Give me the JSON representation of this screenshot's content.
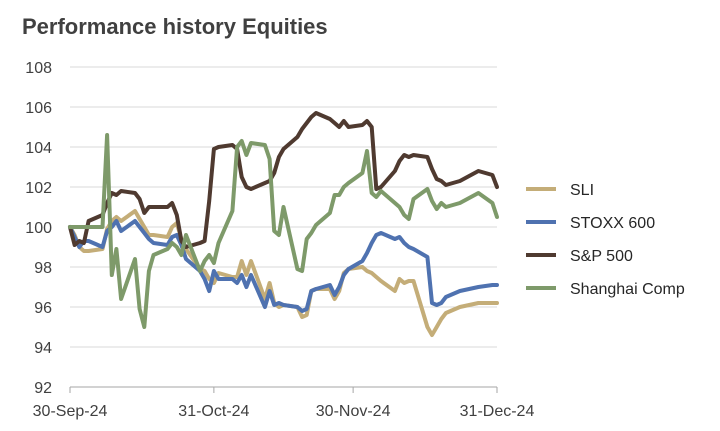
{
  "chart_data": {
    "type": "line",
    "title": "Performance history Equities",
    "xlabel": "",
    "ylabel": "",
    "ylim": [
      92,
      108
    ],
    "yticks": [
      92,
      94,
      96,
      98,
      100,
      102,
      104,
      106,
      108
    ],
    "xlim": [
      "2024-09-30",
      "2024-12-31"
    ],
    "xticks": [
      "30-Sep-24",
      "31-Oct-24",
      "30-Nov-24",
      "31-Dec-24"
    ],
    "xtick_dates": [
      "2024-09-30",
      "2024-10-31",
      "2024-11-30",
      "2024-12-31"
    ],
    "grid": "horizontal",
    "legend_position": "right",
    "series": [
      {
        "name": "SLI",
        "color": "#c4ad78",
        "x": [
          "2024-09-30",
          "2024-10-01",
          "2024-10-02",
          "2024-10-03",
          "2024-10-04",
          "2024-10-07",
          "2024-10-08",
          "2024-10-09",
          "2024-10-10",
          "2024-10-11",
          "2024-10-14",
          "2024-10-15",
          "2024-10-16",
          "2024-10-17",
          "2024-10-18",
          "2024-10-21",
          "2024-10-22",
          "2024-10-23",
          "2024-10-24",
          "2024-10-25",
          "2024-10-28",
          "2024-10-29",
          "2024-10-30",
          "2024-10-31",
          "2024-11-01",
          "2024-11-04",
          "2024-11-05",
          "2024-11-06",
          "2024-11-07",
          "2024-11-08",
          "2024-11-11",
          "2024-11-12",
          "2024-11-13",
          "2024-11-14",
          "2024-11-15",
          "2024-11-18",
          "2024-11-19",
          "2024-11-20",
          "2024-11-21",
          "2024-11-22",
          "2024-11-25",
          "2024-11-26",
          "2024-11-27",
          "2024-11-28",
          "2024-11-29",
          "2024-12-02",
          "2024-12-03",
          "2024-12-04",
          "2024-12-05",
          "2024-12-06",
          "2024-12-09",
          "2024-12-10",
          "2024-12-11",
          "2024-12-12",
          "2024-12-13",
          "2024-12-16",
          "2024-12-17",
          "2024-12-18",
          "2024-12-19",
          "2024-12-20",
          "2024-12-23",
          "2024-12-27",
          "2024-12-30",
          "2024-12-31"
        ],
        "y": [
          100.0,
          99.6,
          99.0,
          98.8,
          98.8,
          98.9,
          99.9,
          100.3,
          100.5,
          100.3,
          100.8,
          100.4,
          100.0,
          99.6,
          99.6,
          99.5,
          100.0,
          100.2,
          99.4,
          98.9,
          97.9,
          97.8,
          97.4,
          97.2,
          97.7,
          97.5,
          97.5,
          98.3,
          97.6,
          98.3,
          96.4,
          97.2,
          96.2,
          96.0,
          96.1,
          96.0,
          95.5,
          95.6,
          96.8,
          96.9,
          96.9,
          96.4,
          96.8,
          97.7,
          97.9,
          98.0,
          97.8,
          97.7,
          97.5,
          97.3,
          96.8,
          97.4,
          97.2,
          97.3,
          97.3,
          95.0,
          94.6,
          95.0,
          95.4,
          95.7,
          96.0,
          96.2,
          96.2,
          96.2
        ]
      },
      {
        "name": "STOXX 600",
        "color": "#4f72b0",
        "x": [
          "2024-09-30",
          "2024-10-01",
          "2024-10-02",
          "2024-10-03",
          "2024-10-04",
          "2024-10-07",
          "2024-10-08",
          "2024-10-09",
          "2024-10-10",
          "2024-10-11",
          "2024-10-14",
          "2024-10-15",
          "2024-10-16",
          "2024-10-17",
          "2024-10-18",
          "2024-10-21",
          "2024-10-22",
          "2024-10-23",
          "2024-10-24",
          "2024-10-25",
          "2024-10-28",
          "2024-10-29",
          "2024-10-30",
          "2024-10-31",
          "2024-11-01",
          "2024-11-04",
          "2024-11-05",
          "2024-11-06",
          "2024-11-07",
          "2024-11-08",
          "2024-11-11",
          "2024-11-12",
          "2024-11-13",
          "2024-11-14",
          "2024-11-15",
          "2024-11-18",
          "2024-11-19",
          "2024-11-20",
          "2024-11-21",
          "2024-11-22",
          "2024-11-25",
          "2024-11-26",
          "2024-11-27",
          "2024-11-28",
          "2024-11-29",
          "2024-12-02",
          "2024-12-03",
          "2024-12-04",
          "2024-12-05",
          "2024-12-06",
          "2024-12-09",
          "2024-12-10",
          "2024-12-11",
          "2024-12-12",
          "2024-12-13",
          "2024-12-16",
          "2024-12-17",
          "2024-12-18",
          "2024-12-19",
          "2024-12-20",
          "2024-12-23",
          "2024-12-27",
          "2024-12-30",
          "2024-12-31"
        ],
        "y": [
          100.0,
          99.5,
          99.0,
          99.3,
          99.3,
          99.0,
          99.8,
          100.0,
          100.3,
          99.8,
          100.3,
          100.0,
          99.7,
          99.4,
          99.2,
          99.1,
          99.5,
          99.6,
          99.1,
          98.4,
          97.8,
          97.4,
          96.8,
          97.8,
          97.4,
          97.4,
          97.2,
          97.6,
          97.0,
          97.6,
          96.0,
          96.8,
          96.1,
          96.2,
          96.1,
          96.0,
          95.8,
          95.9,
          96.8,
          96.9,
          97.1,
          96.6,
          97.0,
          97.6,
          97.9,
          98.3,
          98.7,
          99.2,
          99.6,
          99.7,
          99.4,
          99.5,
          99.2,
          99.0,
          98.9,
          98.5,
          96.2,
          96.1,
          96.2,
          96.5,
          96.8,
          97.0,
          97.1,
          97.1
        ]
      },
      {
        "name": "S&P 500",
        "color": "#4f3a30",
        "x": [
          "2024-09-30",
          "2024-10-01",
          "2024-10-02",
          "2024-10-03",
          "2024-10-04",
          "2024-10-07",
          "2024-10-08",
          "2024-10-09",
          "2024-10-10",
          "2024-10-11",
          "2024-10-14",
          "2024-10-15",
          "2024-10-16",
          "2024-10-17",
          "2024-10-18",
          "2024-10-21",
          "2024-10-22",
          "2024-10-23",
          "2024-10-24",
          "2024-10-25",
          "2024-10-28",
          "2024-10-29",
          "2024-10-30",
          "2024-10-31",
          "2024-11-01",
          "2024-11-04",
          "2024-11-05",
          "2024-11-06",
          "2024-11-07",
          "2024-11-08",
          "2024-11-11",
          "2024-11-12",
          "2024-11-13",
          "2024-11-14",
          "2024-11-15",
          "2024-11-18",
          "2024-11-19",
          "2024-11-20",
          "2024-11-21",
          "2024-11-22",
          "2024-11-25",
          "2024-11-26",
          "2024-11-27",
          "2024-11-28",
          "2024-11-29",
          "2024-12-02",
          "2024-12-03",
          "2024-12-04",
          "2024-12-05",
          "2024-12-06",
          "2024-12-09",
          "2024-12-10",
          "2024-12-11",
          "2024-12-12",
          "2024-12-13",
          "2024-12-16",
          "2024-12-17",
          "2024-12-18",
          "2024-12-19",
          "2024-12-20",
          "2024-12-23",
          "2024-12-27",
          "2024-12-30",
          "2024-12-31"
        ],
        "y": [
          100.0,
          99.1,
          99.3,
          99.2,
          100.3,
          100.6,
          101.2,
          101.7,
          101.6,
          101.8,
          101.7,
          101.4,
          100.7,
          101.0,
          101.0,
          101.0,
          101.2,
          100.6,
          99.3,
          99.0,
          99.2,
          99.3,
          101.3,
          103.9,
          104.0,
          104.1,
          103.9,
          102.5,
          102.0,
          101.9,
          102.2,
          102.3,
          102.7,
          103.5,
          103.9,
          104.5,
          104.9,
          105.2,
          105.5,
          105.7,
          105.4,
          105.2,
          105.0,
          105.3,
          105.0,
          105.1,
          105.3,
          105.0,
          101.9,
          102.0,
          102.8,
          103.3,
          103.6,
          103.5,
          103.6,
          103.5,
          102.9,
          102.4,
          102.3,
          102.1,
          102.3,
          102.8,
          102.6,
          102.0
        ]
      },
      {
        "name": "Shanghai Comp",
        "color": "#7e9a6a",
        "x": [
          "2024-09-30",
          "2024-10-01",
          "2024-10-02",
          "2024-10-03",
          "2024-10-04",
          "2024-10-07",
          "2024-10-08",
          "2024-10-09",
          "2024-10-10",
          "2024-10-11",
          "2024-10-14",
          "2024-10-15",
          "2024-10-16",
          "2024-10-17",
          "2024-10-18",
          "2024-10-21",
          "2024-10-22",
          "2024-10-23",
          "2024-10-24",
          "2024-10-25",
          "2024-10-28",
          "2024-10-29",
          "2024-10-30",
          "2024-10-31",
          "2024-11-01",
          "2024-11-04",
          "2024-11-05",
          "2024-11-06",
          "2024-11-07",
          "2024-11-08",
          "2024-11-11",
          "2024-11-12",
          "2024-11-13",
          "2024-11-14",
          "2024-11-15",
          "2024-11-18",
          "2024-11-19",
          "2024-11-20",
          "2024-11-21",
          "2024-11-22",
          "2024-11-25",
          "2024-11-26",
          "2024-11-27",
          "2024-11-28",
          "2024-11-29",
          "2024-12-02",
          "2024-12-03",
          "2024-12-04",
          "2024-12-05",
          "2024-12-06",
          "2024-12-09",
          "2024-12-10",
          "2024-12-11",
          "2024-12-12",
          "2024-12-13",
          "2024-12-16",
          "2024-12-17",
          "2024-12-18",
          "2024-12-19",
          "2024-12-20",
          "2024-12-23",
          "2024-12-27",
          "2024-12-30",
          "2024-12-31"
        ],
        "y": [
          100.0,
          100.0,
          100.0,
          100.0,
          100.0,
          100.0,
          104.6,
          97.6,
          98.9,
          96.4,
          98.4,
          95.9,
          95.0,
          97.8,
          98.6,
          98.9,
          99.2,
          99.0,
          98.6,
          99.6,
          97.8,
          98.3,
          98.6,
          98.2,
          99.2,
          100.8,
          104.0,
          104.3,
          103.6,
          104.2,
          104.1,
          103.4,
          99.8,
          99.6,
          101.0,
          97.9,
          97.8,
          99.4,
          99.7,
          100.1,
          100.7,
          101.6,
          101.6,
          102.0,
          102.2,
          102.7,
          103.8,
          101.7,
          101.5,
          101.8,
          101.2,
          101.0,
          100.6,
          100.4,
          101.4,
          101.9,
          101.3,
          100.9,
          101.2,
          101.0,
          101.2,
          101.7,
          101.2,
          100.5
        ]
      }
    ]
  }
}
